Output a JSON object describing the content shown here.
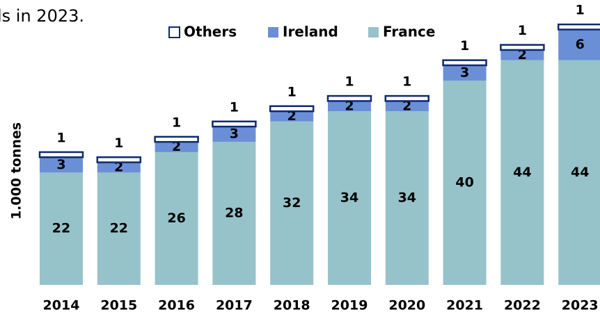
{
  "chart_data": {
    "type": "stacked_bar",
    "annotation": "ls in 2023.",
    "y_label": "1.000 tonnes",
    "categories": [
      "2014",
      "2015",
      "2016",
      "2017",
      "2018",
      "2019",
      "2020",
      "2021",
      "2022",
      "2023"
    ],
    "series": [
      {
        "name": "France",
        "color": "#96c3c9",
        "values": [
          22,
          22,
          26,
          28,
          32,
          34,
          34,
          40,
          44,
          44
        ]
      },
      {
        "name": "Ireland",
        "color": "#6b8fd6",
        "values": [
          3,
          2,
          2,
          3,
          2,
          2,
          2,
          3,
          2,
          6
        ]
      },
      {
        "name": "Others",
        "color": "#ffffff",
        "values": [
          1,
          1,
          1,
          1,
          1,
          1,
          1,
          1,
          1,
          1
        ]
      }
    ]
  }
}
